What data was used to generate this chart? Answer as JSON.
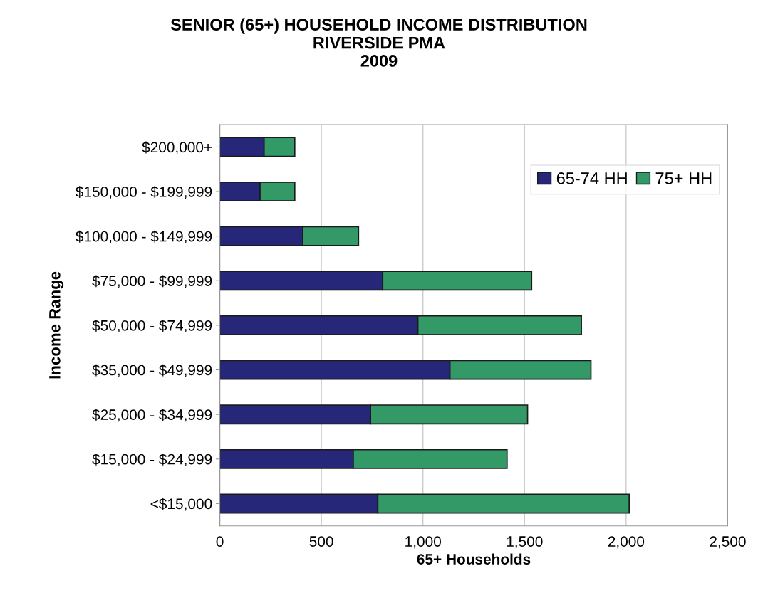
{
  "chart_data": {
    "type": "bar",
    "orientation": "horizontal",
    "stacked": true,
    "title": "SENIOR (65+) HOUSEHOLD INCOME DISTRIBUTION\nRIVERSIDE PMA\n2009",
    "xlabel": "65+ Households",
    "ylabel": "Income Range",
    "categories": [
      "$200,000+",
      "$150,000 - $199,999",
      "$100,000 - $149,999",
      "$75,000 - $99,999",
      "$50,000 - $74,999",
      "$35,000 - $49,999",
      "$25,000 - $34,999",
      "$15,000 - $24,999",
      "<$15,000"
    ],
    "series": [
      {
        "name": "65-74 HH",
        "color": "#27277a",
        "values": [
          218,
          198,
          409,
          802,
          975,
          1133,
          742,
          657,
          778
        ]
      },
      {
        "name": "75+ HH",
        "color": "#339966",
        "values": [
          151,
          171,
          274,
          733,
          805,
          694,
          773,
          757,
          1237
        ]
      }
    ],
    "xlim": [
      0,
      2500
    ],
    "xticks": [
      {
        "value": 0,
        "label": "0"
      },
      {
        "value": 500,
        "label": "500"
      },
      {
        "value": 1000,
        "label": "1,000"
      },
      {
        "value": 1500,
        "label": "1,500"
      },
      {
        "value": 2000,
        "label": "2,000"
      },
      {
        "value": 2500,
        "label": "2,500"
      }
    ],
    "grid": "x",
    "legend": "top right"
  }
}
